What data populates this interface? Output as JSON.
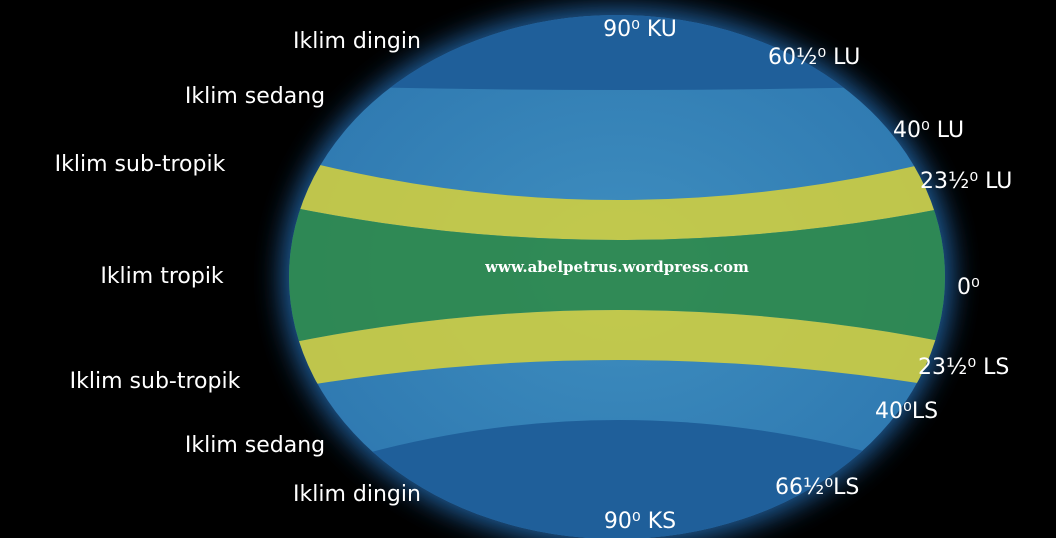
{
  "zones": {
    "left": [
      "Iklim dingin",
      "Iklim sedang",
      "Iklim sub-tropik",
      "Iklim tropik",
      "Iklim sub-tropik",
      "Iklim sedang",
      "Iklim dingin"
    ],
    "right": [
      "90⁰ KU",
      "60½⁰ LU",
      "40⁰ LU",
      "23½⁰ LU",
      "0⁰",
      "23½⁰ LS",
      "40⁰LS",
      "66½⁰LS",
      "90⁰ KS"
    ]
  },
  "watermark": "www.abelpetrus.wordpress.com"
}
